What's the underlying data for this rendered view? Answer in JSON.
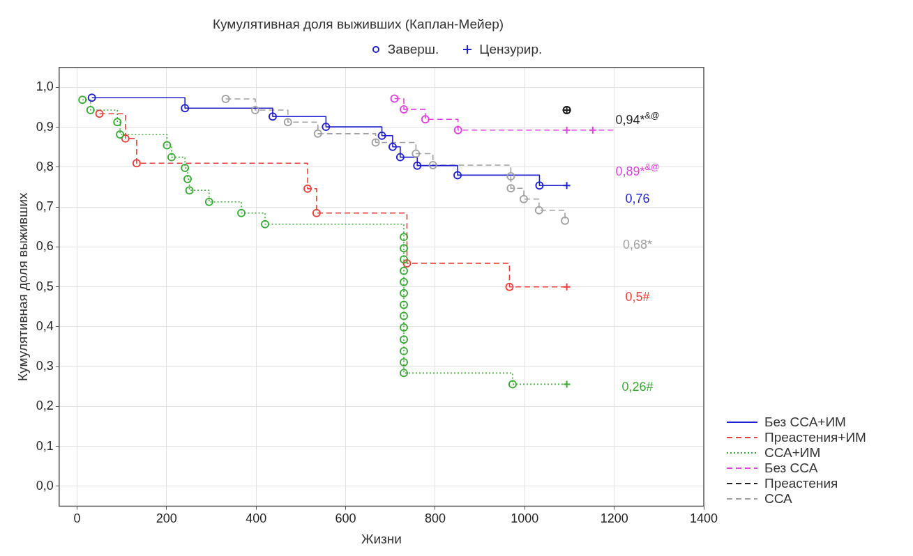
{
  "chart_data": {
    "type": "step",
    "title": "Кумулятивная доля выживших (Каплан-Мейер)",
    "xlabel": "Жизни",
    "ylabel": "Кумулятивная доля выживших",
    "xlim": [
      -40,
      1400
    ],
    "xticks": [
      0,
      200,
      400,
      600,
      800,
      1000,
      1200,
      1400
    ],
    "ylim": [
      -0.05,
      1.05
    ],
    "yticks": [
      {
        "value": 0,
        "label": "0,0"
      },
      {
        "value": 0.1,
        "label": "0,1"
      },
      {
        "value": 0.2,
        "label": "0,2"
      },
      {
        "value": 0.3,
        "label": "0,3"
      },
      {
        "value": 0.4,
        "label": "0,4"
      },
      {
        "value": 0.5,
        "label": "0,5"
      },
      {
        "value": 0.6,
        "label": "0,6"
      },
      {
        "value": 0.7,
        "label": "0,7"
      },
      {
        "value": 0.8,
        "label": "0,8"
      },
      {
        "value": 0.9,
        "label": "0,9"
      },
      {
        "value": 1,
        "label": "1,0"
      }
    ],
    "grid": true,
    "legend": "right",
    "series": [
      {
        "name": "Без ССА+ИМ",
        "color": "#2020d0",
        "line_style": "solid",
        "marker": "none",
        "x": [
          33,
          241,
          437,
          556,
          681,
          705,
          722,
          760,
          850,
          1033,
          1094
        ],
        "values": [
          0.974,
          0.948,
          0.927,
          0.901,
          0.879,
          0.851,
          0.825,
          0.804,
          0.78,
          0.754,
          0.754
        ]
      },
      {
        "name": "Преастения+ИМ",
        "color": "#e8413c",
        "line_style": "dashed",
        "marker": "none",
        "x": [
          50,
          108,
          133,
          515,
          535,
          737,
          966,
          1094
        ],
        "values": [
          0.934,
          0.872,
          0.81,
          0.746,
          0.685,
          0.559,
          0.5,
          0.5
        ]
      },
      {
        "name": "ССА+ИМ",
        "color": "#3aaa35",
        "line_style": "dotted",
        "marker": "none",
        "x": [
          12,
          30,
          90,
          96,
          201,
          211,
          241,
          247,
          251,
          295,
          367,
          420,
          730,
          730,
          730,
          730,
          730,
          730,
          730,
          730,
          730,
          730,
          730,
          730,
          730,
          973,
          1094
        ],
        "values": [
          0.969,
          0.943,
          0.913,
          0.882,
          0.855,
          0.825,
          0.798,
          0.77,
          0.742,
          0.713,
          0.685,
          0.657,
          0.625,
          0.597,
          0.569,
          0.54,
          0.512,
          0.484,
          0.455,
          0.427,
          0.398,
          0.368,
          0.339,
          0.311,
          0.284,
          0.256,
          0.256
        ]
      },
      {
        "name": "Без ССА",
        "color": "#e040e0",
        "line_style": "dashed",
        "marker": "none",
        "x": [
          709,
          730,
          778,
          851,
          1094,
          1152,
          1198
        ],
        "values": [
          0.972,
          0.945,
          0.92,
          0.893,
          0.893,
          0.893,
          0.893
        ]
      },
      {
        "name": "Преастения",
        "color": "#222222",
        "line_style": "dashed",
        "marker": "circle",
        "x": [
          1094
        ],
        "values": [
          0.943
        ]
      },
      {
        "name": "ССА",
        "color": "#a0a0a0",
        "line_style": "dashed",
        "marker": "none",
        "x": [
          332,
          398,
          471,
          538,
          667,
          757,
          795,
          969,
          969,
          998,
          1032,
          1090
        ],
        "values": [
          0.971,
          0.943,
          0.913,
          0.884,
          0.862,
          0.834,
          0.805,
          0.777,
          0.747,
          0.72,
          0.692,
          0.666
        ]
      },
      {
        "name": "Заверш.",
        "type": "scatter",
        "marker": "circle",
        "color": "#2020d0",
        "x": [
          33,
          241,
          437,
          556,
          681,
          705,
          722,
          760,
          850,
          1033,
          50,
          108,
          133,
          515,
          535,
          737,
          966,
          12,
          30,
          90,
          96,
          201,
          211,
          241,
          247,
          251,
          295,
          367,
          420,
          730,
          730,
          730,
          730,
          730,
          730,
          730,
          730,
          730,
          730,
          730,
          730,
          730,
          973,
          709,
          730,
          778,
          851,
          1094,
          332,
          398,
          471,
          538,
          667,
          757,
          795,
          969,
          969,
          998,
          1032,
          1090
        ],
        "values": [
          0.974,
          0.948,
          0.927,
          0.901,
          0.879,
          0.851,
          0.825,
          0.804,
          0.78,
          0.754,
          0.934,
          0.872,
          0.81,
          0.746,
          0.685,
          0.559,
          0.5,
          0.969,
          0.943,
          0.913,
          0.882,
          0.855,
          0.825,
          0.798,
          0.77,
          0.742,
          0.713,
          0.685,
          0.657,
          0.625,
          0.597,
          0.569,
          0.54,
          0.512,
          0.484,
          0.455,
          0.427,
          0.398,
          0.368,
          0.339,
          0.311,
          0.284,
          0.256,
          0.972,
          0.945,
          0.92,
          0.893,
          0.943,
          0.971,
          0.943,
          0.913,
          0.884,
          0.862,
          0.834,
          0.805,
          0.777,
          0.747,
          0.72,
          0.692,
          0.666
        ],
        "colors": [
          "#2020d0",
          "#2020d0",
          "#2020d0",
          "#2020d0",
          "#2020d0",
          "#2020d0",
          "#2020d0",
          "#2020d0",
          "#2020d0",
          "#2020d0",
          "#e8413c",
          "#e8413c",
          "#e8413c",
          "#e8413c",
          "#e8413c",
          "#e8413c",
          "#e8413c",
          "#3aaa35",
          "#3aaa35",
          "#3aaa35",
          "#3aaa35",
          "#3aaa35",
          "#3aaa35",
          "#3aaa35",
          "#3aaa35",
          "#3aaa35",
          "#3aaa35",
          "#3aaa35",
          "#3aaa35",
          "#3aaa35",
          "#3aaa35",
          "#3aaa35",
          "#3aaa35",
          "#3aaa35",
          "#3aaa35",
          "#3aaa35",
          "#3aaa35",
          "#3aaa35",
          "#3aaa35",
          "#3aaa35",
          "#3aaa35",
          "#3aaa35",
          "#3aaa35",
          "#e040e0",
          "#e040e0",
          "#e040e0",
          "#e040e0",
          "#222222",
          "#a0a0a0",
          "#a0a0a0",
          "#a0a0a0",
          "#a0a0a0",
          "#a0a0a0",
          "#a0a0a0",
          "#a0a0a0",
          "#a0a0a0",
          "#a0a0a0",
          "#a0a0a0",
          "#a0a0a0",
          "#a0a0a0"
        ]
      },
      {
        "name": "Цензурир.",
        "type": "scatter",
        "marker": "cross",
        "color": "#2020d0",
        "x": [
          1094,
          1094,
          1094,
          1094,
          1152,
          1094
        ],
        "values": [
          0.754,
          0.5,
          0.256,
          0.893,
          0.893,
          0.943
        ],
        "colors": [
          "#2020d0",
          "#e8413c",
          "#3aaa35",
          "#e040e0",
          "#e040e0",
          "#222222"
        ]
      }
    ],
    "annotations": [
      "0,94*$^{&@}$",
      "0,89*$^{&@}$",
      "0,76",
      "0,68*",
      "0,5#",
      "0,26#"
    ]
  }
}
